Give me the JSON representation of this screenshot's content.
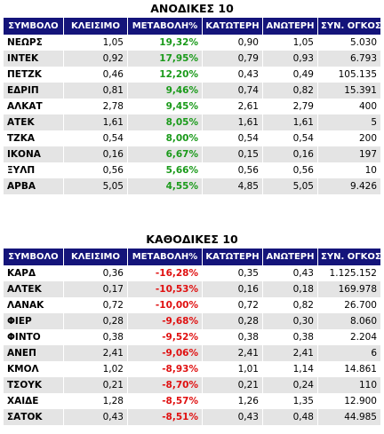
{
  "gainers": {
    "title": "ΑΝΟΔΙΚΕΣ 10",
    "headers": [
      "ΣΥΜΒΟΛΟ",
      "ΚΛΕΙΣΙΜΟ",
      "ΜΕΤΑΒΟΛΗ%",
      "ΚΑΤΩΤΕΡΗ",
      "ΑΝΩΤΕΡΗ",
      "ΣΥΝ. ΟΓΚΟΣ"
    ],
    "rows": [
      [
        "ΝΕΩΡΣ",
        "1,05",
        "19,32%",
        "0,90",
        "1,05",
        "5.030"
      ],
      [
        "ΙΝΤΕΚ",
        "0,92",
        "17,95%",
        "0,79",
        "0,93",
        "6.793"
      ],
      [
        "ΠΕΤΖΚ",
        "0,46",
        "12,20%",
        "0,43",
        "0,49",
        "105.135"
      ],
      [
        "ΕΔΡΙΠ",
        "0,81",
        "9,46%",
        "0,74",
        "0,82",
        "15.391"
      ],
      [
        "ΑΛΚΑΤ",
        "2,78",
        "9,45%",
        "2,61",
        "2,79",
        "400"
      ],
      [
        "ΑΤΕΚ",
        "1,61",
        "8,05%",
        "1,61",
        "1,61",
        "5"
      ],
      [
        "ΤΖΚΑ",
        "0,54",
        "8,00%",
        "0,54",
        "0,54",
        "200"
      ],
      [
        "ΙΚΟΝΑ",
        "0,16",
        "6,67%",
        "0,15",
        "0,16",
        "197"
      ],
      [
        "ΞΥΛΠ",
        "0,56",
        "5,66%",
        "0,56",
        "0,56",
        "10"
      ],
      [
        "ΑΡΒΑ",
        "5,05",
        "4,55%",
        "4,85",
        "5,05",
        "9.426"
      ]
    ]
  },
  "losers": {
    "title": "ΚΑΘΟΔΙΚΕΣ 10",
    "headers": [
      "ΣΥΜΒΟΛΟ",
      "ΚΛΕΙΣΙΜΟ",
      "ΜΕΤΑΒΟΛΗ%",
      "ΚΑΤΩΤΕΡΗ",
      "ΑΝΩΤΕΡΗ",
      "ΣΥΝ. ΟΓΚΟΣ"
    ],
    "rows": [
      [
        "ΚΑΡΔ",
        "0,36",
        "-16,28%",
        "0,35",
        "0,43",
        "1.125.152"
      ],
      [
        "ΑΛΤΕΚ",
        "0,17",
        "-10,53%",
        "0,16",
        "0,18",
        "169.978"
      ],
      [
        "ΛΑΝΑΚ",
        "0,72",
        "-10,00%",
        "0,72",
        "0,82",
        "26.700"
      ],
      [
        "ΦΙΕΡ",
        "0,28",
        "-9,68%",
        "0,28",
        "0,30",
        "8.060"
      ],
      [
        "ΦΙΝΤΟ",
        "0,38",
        "-9,52%",
        "0,38",
        "0,38",
        "2.204"
      ],
      [
        "ΑΝΕΠ",
        "2,41",
        "-9,06%",
        "2,41",
        "2,41",
        "6"
      ],
      [
        "ΚΜΟΛ",
        "1,02",
        "-8,93%",
        "1,01",
        "1,14",
        "14.861"
      ],
      [
        "ΤΣΟΥΚ",
        "0,21",
        "-8,70%",
        "0,21",
        "0,24",
        "110"
      ],
      [
        "ΧΑΙΔΕ",
        "1,28",
        "-8,57%",
        "1,26",
        "1,35",
        "12.900"
      ],
      [
        "ΣΑΤΟΚ",
        "0,43",
        "-8,51%",
        "0,43",
        "0,48",
        "44.985"
      ]
    ]
  },
  "colors": {
    "header_bg": "#14147a",
    "positive": "#1a9a1a",
    "negative": "#e01010",
    "row_alt": "#e4e4e4"
  }
}
